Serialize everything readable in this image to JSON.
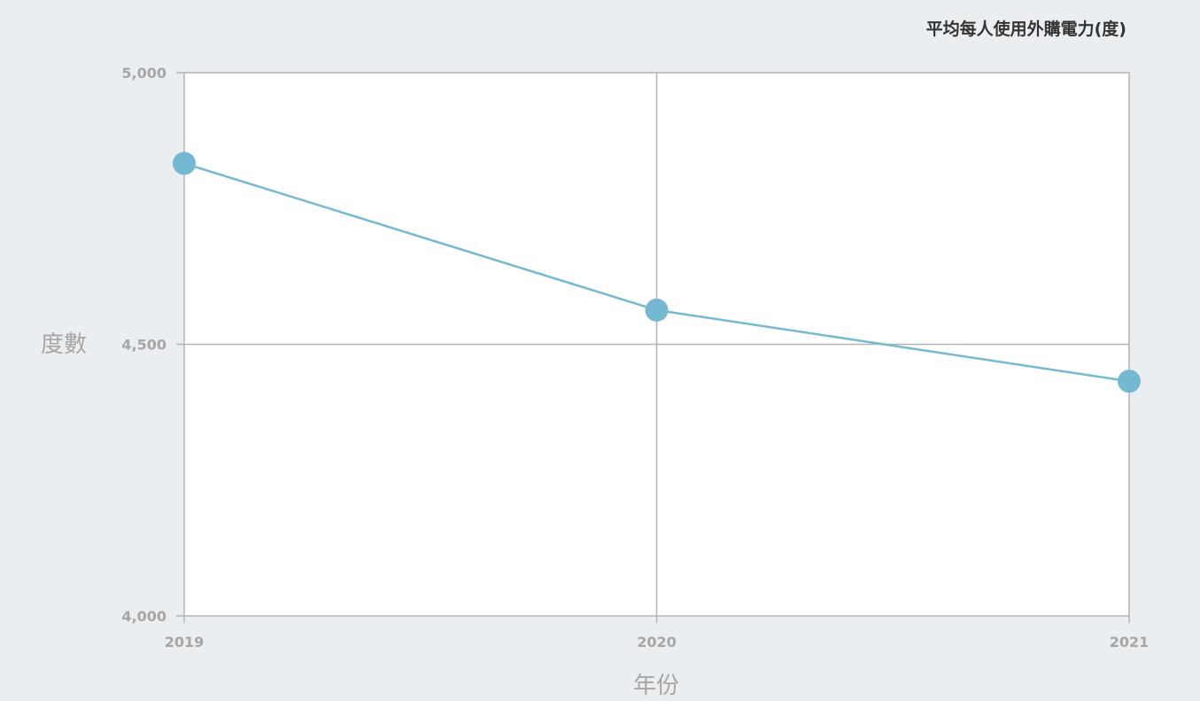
{
  "chart_data": {
    "type": "line",
    "title": "",
    "categories": [
      "2019",
      "2020",
      "2021"
    ],
    "series": [
      {
        "name": "平均每人使用外購電力(度)",
        "values": [
          4833,
          4563,
          4432
        ],
        "color": "#74b9d1"
      }
    ],
    "xlabel": "年份",
    "ylabel": "度數",
    "ylim": [
      4000,
      5000
    ],
    "yticks": [
      4000,
      4500,
      5000
    ],
    "ytick_labels": [
      "4,000",
      "4,500",
      "5,000"
    ],
    "grid": true,
    "legend_position": "top-right",
    "colors": {
      "background": "#ebeef1",
      "plot_background": "#ffffff",
      "grid": "#b3b3b3",
      "text": "#a6a6a6",
      "legend_text": "#333333"
    }
  }
}
